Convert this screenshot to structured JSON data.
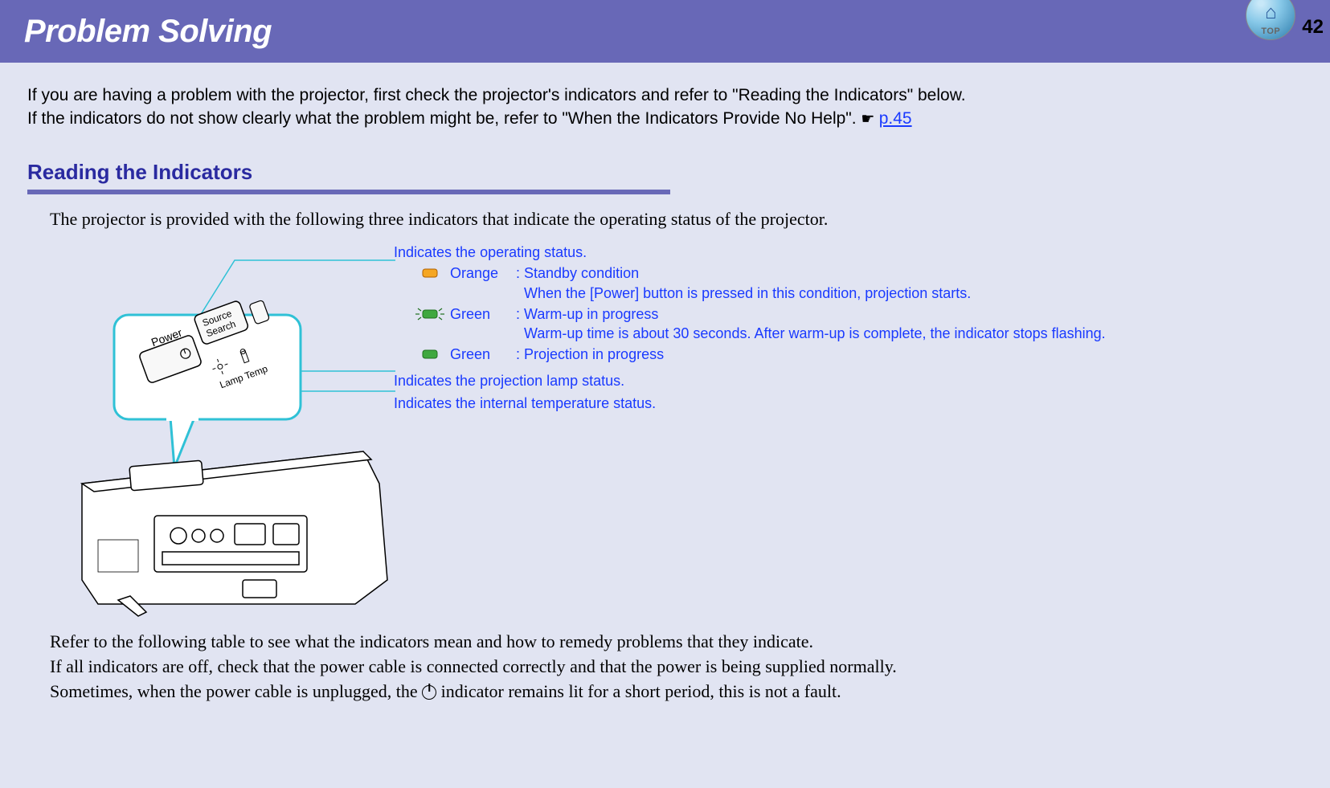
{
  "header": {
    "title": "Problem Solving",
    "top_label": "TOP",
    "page_number": "42"
  },
  "intro": {
    "line1": "If you are having a problem with the projector, first check the projector's indicators and refer to \"Reading the Indicators\" below.",
    "line2": "If the indicators do not show clearly what the problem might be, refer to \"When the Indicators Provide No Help\". ",
    "link": "p.45"
  },
  "section": {
    "title": "Reading the Indicators",
    "rule_color": "#6868b7",
    "desc": "The projector is provided with the following three indicators that indicate the operating status of the projector."
  },
  "diagram": {
    "callout_bg": "#ffffff",
    "callout_border": "#2fc1d6",
    "projector_line": "#000000",
    "buttons": {
      "power": "Power",
      "source": "Source Search",
      "lamp": "Lamp",
      "temp": "Temp"
    }
  },
  "annotations": {
    "anno1": "Indicates the operating status.",
    "statuses": [
      {
        "icon": {
          "type": "solid",
          "fill": "#f5a623",
          "stroke": "#b06000"
        },
        "color_name": "Orange",
        "desc": ": Standby condition",
        "sub": "When the [Power] button is pressed in this condition, projection starts."
      },
      {
        "icon": {
          "type": "flashing",
          "fill": "#3fa83f",
          "stroke": "#1f6f1f"
        },
        "color_name": "Green",
        "desc": ": Warm-up in progress",
        "sub": "Warm-up time is about 30 seconds. After warm-up is complete, the indicator stops flashing."
      },
      {
        "icon": {
          "type": "solid",
          "fill": "#3fa83f",
          "stroke": "#1f6f1f"
        },
        "color_name": "Green",
        "desc": ": Projection in progress",
        "sub": ""
      }
    ],
    "anno2": "Indicates the projection lamp status.",
    "anno3": "Indicates the internal temperature status."
  },
  "refer": {
    "line1": "Refer to the following table to see what the indicators mean and how to remedy problems that they indicate.",
    "line2": "If all indicators are off, check that the power cable is connected correctly and that the power is being supplied normally.",
    "line3_a": "Sometimes, when the power cable is unplugged, the ",
    "line3_b": " indicator remains lit for a short period, this is not a fault."
  }
}
